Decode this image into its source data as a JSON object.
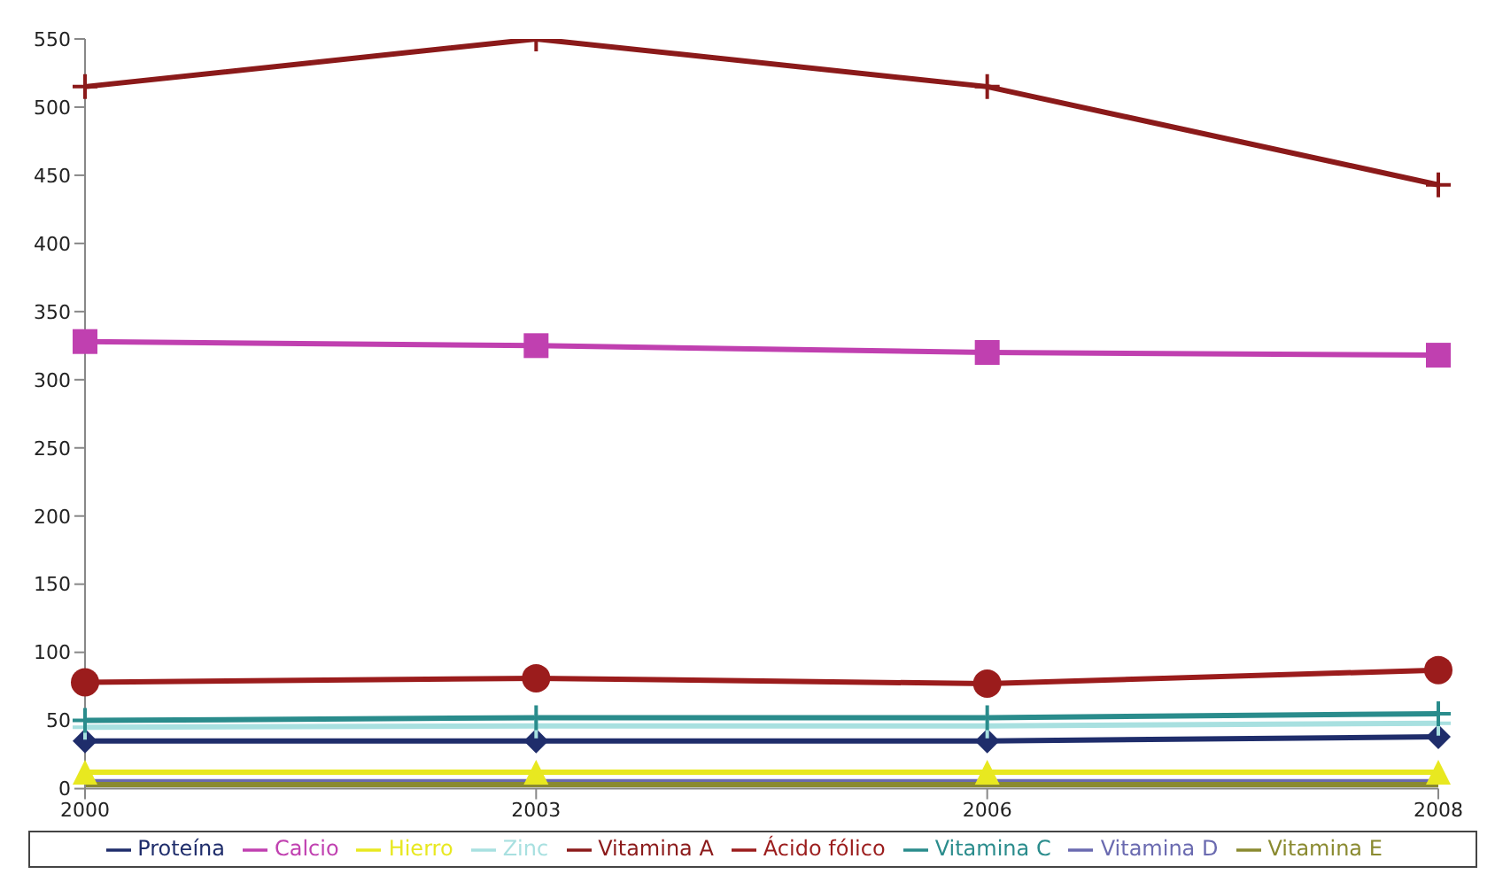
{
  "chart_data": {
    "type": "line",
    "categories": [
      "2000",
      "2003",
      "2006",
      "2008"
    ],
    "series": [
      {
        "name": "Proteína",
        "color": "#1f2d6b",
        "marker": "diamond",
        "values": [
          35,
          35,
          35,
          38
        ]
      },
      {
        "name": "Calcio",
        "color": "#c040b0",
        "marker": "square",
        "values": [
          328,
          325,
          320,
          318
        ]
      },
      {
        "name": "Hierro",
        "color": "#e8e820",
        "marker": "triangle",
        "values": [
          12,
          12,
          12,
          12
        ]
      },
      {
        "name": "Zinc",
        "color": "#a8e0e0",
        "marker": "cross",
        "values": [
          45,
          46,
          46,
          48
        ]
      },
      {
        "name": "Vitamina A",
        "color": "#8b1a1a",
        "marker": "cross",
        "values": [
          515,
          550,
          515,
          443
        ]
      },
      {
        "name": "Ácido fólico",
        "color": "#9b1c1c",
        "marker": "circle",
        "values": [
          78,
          81,
          77,
          87
        ]
      },
      {
        "name": "Vitamina C",
        "color": "#2a8c8c",
        "marker": "cross",
        "values": [
          50,
          52,
          52,
          55
        ]
      },
      {
        "name": "Vitamina D",
        "color": "#6a6ab0",
        "marker": "none",
        "values": [
          5,
          5,
          5,
          5
        ]
      },
      {
        "name": "Vitamina E",
        "color": "#8a8a30",
        "marker": "none",
        "values": [
          3,
          3,
          3,
          3
        ]
      }
    ],
    "ylim": [
      0,
      550
    ],
    "yticks": [
      0,
      50,
      100,
      150,
      200,
      250,
      300,
      350,
      400,
      450,
      500,
      550
    ],
    "grid": false,
    "legend": "bottom",
    "line_style": "solid"
  }
}
